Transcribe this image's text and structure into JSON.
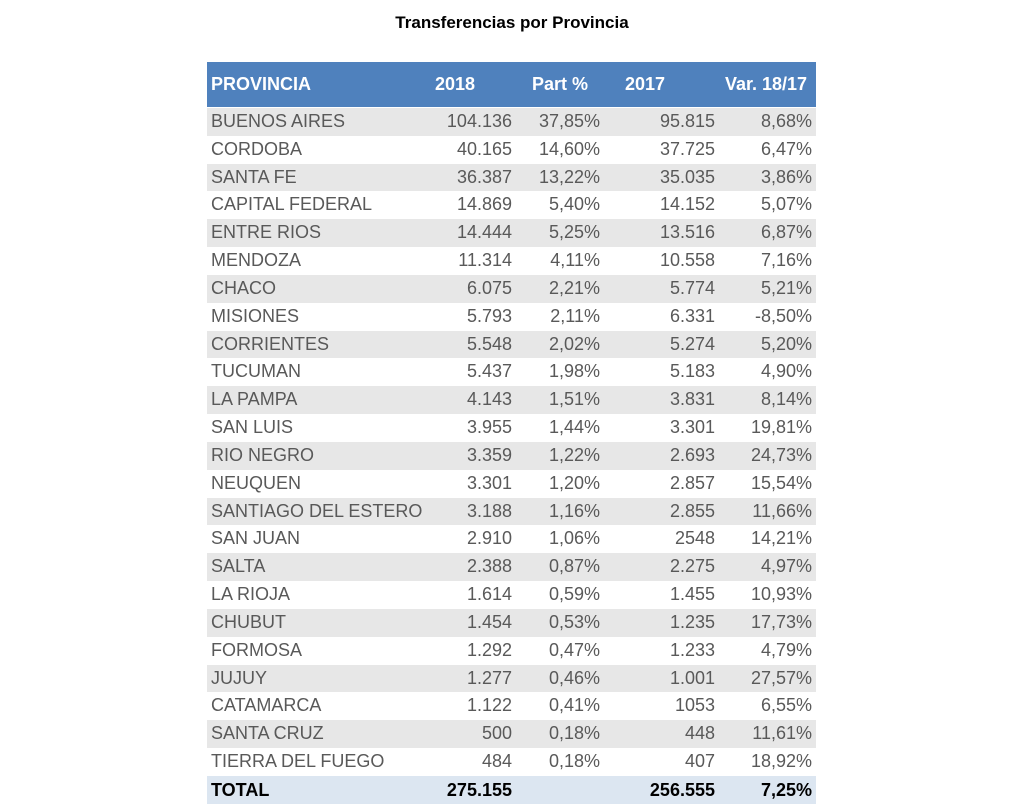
{
  "title": "Transferencias por Provincia",
  "table": {
    "header": [
      "PROVINCIA",
      "2018",
      "Part %",
      "2017",
      "Var. 18/17"
    ],
    "rows": [
      [
        "BUENOS AIRES",
        "104.136",
        "37,85%",
        "95.815",
        "8,68%"
      ],
      [
        "CORDOBA",
        "40.165",
        "14,60%",
        "37.725",
        "6,47%"
      ],
      [
        "SANTA FE",
        "36.387",
        "13,22%",
        "35.035",
        "3,86%"
      ],
      [
        "CAPITAL FEDERAL",
        "14.869",
        "5,40%",
        "14.152",
        "5,07%"
      ],
      [
        "ENTRE RIOS",
        "14.444",
        "5,25%",
        "13.516",
        "6,87%"
      ],
      [
        "MENDOZA",
        "11.314",
        "4,11%",
        "10.558",
        "7,16%"
      ],
      [
        "CHACO",
        "6.075",
        "2,21%",
        "5.774",
        "5,21%"
      ],
      [
        "MISIONES",
        "5.793",
        "2,11%",
        "6.331",
        "-8,50%"
      ],
      [
        "CORRIENTES",
        "5.548",
        "2,02%",
        "5.274",
        "5,20%"
      ],
      [
        "TUCUMAN",
        "5.437",
        "1,98%",
        "5.183",
        "4,90%"
      ],
      [
        "LA PAMPA",
        "4.143",
        "1,51%",
        "3.831",
        "8,14%"
      ],
      [
        "SAN LUIS",
        "3.955",
        "1,44%",
        "3.301",
        "19,81%"
      ],
      [
        "RIO NEGRO",
        "3.359",
        "1,22%",
        "2.693",
        "24,73%"
      ],
      [
        "NEUQUEN",
        "3.301",
        "1,20%",
        "2.857",
        "15,54%"
      ],
      [
        "SANTIAGO DEL ESTERO",
        "3.188",
        "1,16%",
        "2.855",
        "11,66%"
      ],
      [
        "SAN JUAN",
        "2.910",
        "1,06%",
        "2548",
        "14,21%"
      ],
      [
        "SALTA",
        "2.388",
        "0,87%",
        "2.275",
        "4,97%"
      ],
      [
        "LA RIOJA",
        "1.614",
        "0,59%",
        "1.455",
        "10,93%"
      ],
      [
        "CHUBUT",
        "1.454",
        "0,53%",
        "1.235",
        "17,73%"
      ],
      [
        "FORMOSA",
        "1.292",
        "0,47%",
        "1.233",
        "4,79%"
      ],
      [
        "JUJUY",
        "1.277",
        "0,46%",
        "1.001",
        "27,57%"
      ],
      [
        "CATAMARCA",
        "1.122",
        "0,41%",
        "1053",
        "6,55%"
      ],
      [
        "SANTA CRUZ",
        "500",
        "0,18%",
        "448",
        "11,61%"
      ],
      [
        "TIERRA DEL FUEGO",
        "484",
        "0,18%",
        "407",
        "18,92%"
      ]
    ],
    "total": [
      "TOTAL",
      "275.155",
      "",
      "256.555",
      "7,25%"
    ]
  }
}
